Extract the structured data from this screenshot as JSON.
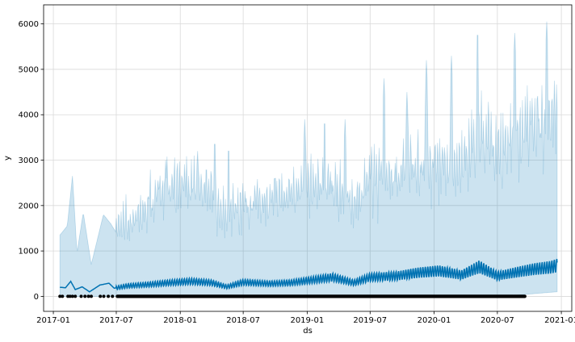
{
  "chart_data": {
    "type": "line",
    "title": "",
    "xlabel": "ds",
    "ylabel": "y",
    "x_range": [
      "2016-12-04",
      "2021-01-31"
    ],
    "ylim": [
      -330,
      6420
    ],
    "grid": true,
    "legend": "none",
    "x_ticks": [
      {
        "date": "2017-01-01",
        "label": "2017-01"
      },
      {
        "date": "2017-07-01",
        "label": "2017-07"
      },
      {
        "date": "2018-01-01",
        "label": "2018-01"
      },
      {
        "date": "2018-07-01",
        "label": "2018-07"
      },
      {
        "date": "2019-01-01",
        "label": "2019-01"
      },
      {
        "date": "2019-07-01",
        "label": "2019-07"
      },
      {
        "date": "2020-01-01",
        "label": "2020-01"
      },
      {
        "date": "2020-07-01",
        "label": "2020-07"
      },
      {
        "date": "2021-01-01",
        "label": "2021-01"
      }
    ],
    "y_ticks": [
      0,
      1000,
      2000,
      3000,
      4000,
      5000,
      6000
    ],
    "colors": {
      "forecast_line": "#0072B2",
      "uncertainty_band": "#0072B2",
      "observed_points": "#000000",
      "grid": "#d9d9d9"
    },
    "series": [
      {
        "kind": "uncertainty_band",
        "points": [
          {
            "date": "2017-01-20",
            "lower": 0,
            "upper": 1350
          },
          {
            "date": "2017-02-10",
            "lower": 0,
            "upper": 1550
          },
          {
            "date": "2017-02-25",
            "lower": 0,
            "upper": 2650
          },
          {
            "date": "2017-03-10",
            "lower": 0,
            "upper": 950
          },
          {
            "date": "2017-03-28",
            "lower": 0,
            "upper": 1850
          },
          {
            "date": "2017-04-20",
            "lower": 0,
            "upper": 700
          },
          {
            "date": "2017-05-25",
            "lower": 0,
            "upper": 1800
          },
          {
            "date": "2017-06-15",
            "lower": 0,
            "upper": 1600
          },
          {
            "date": "2017-07-01",
            "lower": 0,
            "upper": 1400
          },
          {
            "date": "2017-08-15",
            "lower": 0,
            "upper": 1500
          },
          {
            "date": "2017-10-01",
            "lower": 0,
            "upper": 1800
          },
          {
            "date": "2017-11-15",
            "lower": 0,
            "upper": 2000
          },
          {
            "date": "2018-01-01",
            "lower": 0,
            "upper": 2200
          },
          {
            "date": "2018-03-15",
            "lower": 0,
            "upper": 2100
          },
          {
            "date": "2018-05-01",
            "lower": 0,
            "upper": 1600
          },
          {
            "date": "2018-07-01",
            "lower": 0,
            "upper": 1800
          },
          {
            "date": "2018-09-15",
            "lower": 0,
            "upper": 1900
          },
          {
            "date": "2018-11-01",
            "lower": 0,
            "upper": 1950
          },
          {
            "date": "2019-01-01",
            "lower": 0,
            "upper": 2200
          },
          {
            "date": "2019-04-01",
            "lower": 0,
            "upper": 2100
          },
          {
            "date": "2019-05-15",
            "lower": 0,
            "upper": 1800
          },
          {
            "date": "2019-07-01",
            "lower": 0,
            "upper": 2300
          },
          {
            "date": "2019-09-15",
            "lower": 0,
            "upper": 2400
          },
          {
            "date": "2019-11-15",
            "lower": 0,
            "upper": 2600
          },
          {
            "date": "2020-01-01",
            "lower": 0,
            "upper": 2700
          },
          {
            "date": "2020-03-15",
            "lower": 0,
            "upper": 2500
          },
          {
            "date": "2020-05-01",
            "lower": 0,
            "upper": 3100
          },
          {
            "date": "2020-07-01",
            "lower": 0,
            "upper": 2900
          },
          {
            "date": "2020-09-01",
            "lower": 30,
            "upper": 3100
          },
          {
            "date": "2020-10-15",
            "lower": 60,
            "upper": 3300
          },
          {
            "date": "2020-12-01",
            "lower": 90,
            "upper": 3500
          },
          {
            "date": "2020-12-20",
            "lower": 100,
            "upper": 3600
          }
        ],
        "upper_spikes": [
          {
            "date": "2017-06-05",
            "value": 2400
          },
          {
            "date": "2017-11-20",
            "value": 3000
          },
          {
            "date": "2018-02-20",
            "value": 3200
          },
          {
            "date": "2018-04-10",
            "value": 3550
          },
          {
            "date": "2018-05-20",
            "value": 3400
          },
          {
            "date": "2018-10-01",
            "value": 2800
          },
          {
            "date": "2018-12-25",
            "value": 3900
          },
          {
            "date": "2019-02-20",
            "value": 4000
          },
          {
            "date": "2019-04-20",
            "value": 3900
          },
          {
            "date": "2019-08-10",
            "value": 4800
          },
          {
            "date": "2019-10-15",
            "value": 4500
          },
          {
            "date": "2019-12-10",
            "value": 5200
          },
          {
            "date": "2020-02-20",
            "value": 5300
          },
          {
            "date": "2020-05-05",
            "value": 5950
          },
          {
            "date": "2020-08-20",
            "value": 5800
          },
          {
            "date": "2020-11-20",
            "value": 6050
          }
        ]
      },
      {
        "kind": "forecast_line",
        "points": [
          {
            "date": "2017-01-20",
            "value": 200
          },
          {
            "date": "2017-02-05",
            "value": 190
          },
          {
            "date": "2017-02-20",
            "value": 330
          },
          {
            "date": "2017-03-05",
            "value": 150
          },
          {
            "date": "2017-03-25",
            "value": 210
          },
          {
            "date": "2017-04-15",
            "value": 100
          },
          {
            "date": "2017-05-15",
            "value": 250
          },
          {
            "date": "2017-06-10",
            "value": 290
          },
          {
            "date": "2017-06-25",
            "value": 180
          },
          {
            "date": "2017-08-01",
            "value": 230
          },
          {
            "date": "2017-10-01",
            "value": 260
          },
          {
            "date": "2017-12-01",
            "value": 300
          },
          {
            "date": "2018-02-01",
            "value": 330
          },
          {
            "date": "2018-04-01",
            "value": 300
          },
          {
            "date": "2018-05-15",
            "value": 210
          },
          {
            "date": "2018-07-01",
            "value": 310
          },
          {
            "date": "2018-09-15",
            "value": 280
          },
          {
            "date": "2018-11-15",
            "value": 300
          },
          {
            "date": "2019-01-15",
            "value": 360
          },
          {
            "date": "2019-03-15",
            "value": 420
          },
          {
            "date": "2019-05-15",
            "value": 300
          },
          {
            "date": "2019-07-01",
            "value": 420
          },
          {
            "date": "2019-09-15",
            "value": 450
          },
          {
            "date": "2019-11-15",
            "value": 520
          },
          {
            "date": "2020-01-15",
            "value": 560
          },
          {
            "date": "2020-03-20",
            "value": 470
          },
          {
            "date": "2020-05-10",
            "value": 650
          },
          {
            "date": "2020-07-01",
            "value": 450
          },
          {
            "date": "2020-09-01",
            "value": 540
          },
          {
            "date": "2020-10-15",
            "value": 600
          },
          {
            "date": "2020-12-01",
            "value": 640
          },
          {
            "date": "2020-12-20",
            "value": 680
          }
        ]
      },
      {
        "kind": "observed_points",
        "value": 0,
        "from": "2017-01-20",
        "to": "2020-09-18",
        "early_dates": [
          "2017-01-20",
          "2017-01-27",
          "2017-02-12",
          "2017-02-18",
          "2017-02-25",
          "2017-03-05",
          "2017-03-22",
          "2017-04-02",
          "2017-04-12",
          "2017-04-20",
          "2017-05-16",
          "2017-05-26",
          "2017-06-08",
          "2017-06-20",
          "2017-07-04"
        ]
      }
    ]
  }
}
